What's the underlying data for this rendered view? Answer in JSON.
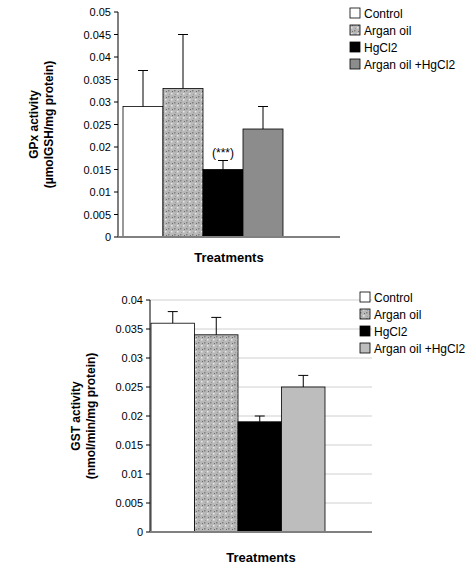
{
  "chart_data": [
    {
      "type": "bar",
      "x_label": "Treatments",
      "y_label": [
        "GPx activity",
        "(µmolGSH/mg protein)"
      ],
      "categories": [
        null
      ],
      "series": [
        {
          "name": "Control",
          "color": "#ffffff",
          "values": [
            0.029
          ],
          "errors": [
            0.008
          ]
        },
        {
          "name": "Argan oil",
          "color": "#b8b8b8",
          "values": [
            0.033
          ],
          "errors": [
            0.012
          ]
        },
        {
          "name": "HgCl2",
          "color": "#000000",
          "values": [
            0.015
          ],
          "errors": [
            0.002
          ],
          "annotation": "(***)"
        },
        {
          "name": "Argan oil +HgCl2",
          "color": "#8c8c8c",
          "values": [
            0.024
          ],
          "errors": [
            0.005
          ]
        }
      ],
      "ylim": [
        0,
        0.05
      ],
      "yticks": [
        0,
        0.005,
        0.01,
        0.015,
        0.02,
        0.025,
        0.03,
        0.035,
        0.04,
        0.045,
        0.05
      ],
      "grid": false,
      "legend": "right",
      "tick_labels": "y"
    },
    {
      "type": "bar",
      "x_label": "Treatments",
      "y_label": [
        "GST activity",
        "(nmol/min/mg protein)"
      ],
      "categories": [
        null
      ],
      "series": [
        {
          "name": "Control",
          "color": "#ffffff",
          "values": [
            0.036
          ],
          "errors": [
            0.002
          ]
        },
        {
          "name": "Argan oil",
          "color": "#b8b8b8",
          "values": [
            0.034
          ],
          "errors": [
            0.003
          ]
        },
        {
          "name": "HgCl2",
          "color": "#000000",
          "values": [
            0.019
          ],
          "errors": [
            0.001
          ]
        },
        {
          "name": "Argan oil +HgCl2",
          "color": "#bdbdbd",
          "values": [
            0.025
          ],
          "errors": [
            0.002
          ]
        }
      ],
      "ylim": [
        0,
        0.04
      ],
      "yticks": [
        0,
        0.005,
        0.01,
        0.015,
        0.02,
        0.025,
        0.03,
        0.035,
        0.04
      ],
      "grid": true,
      "legend": "right",
      "tick_labels": "y"
    }
  ]
}
